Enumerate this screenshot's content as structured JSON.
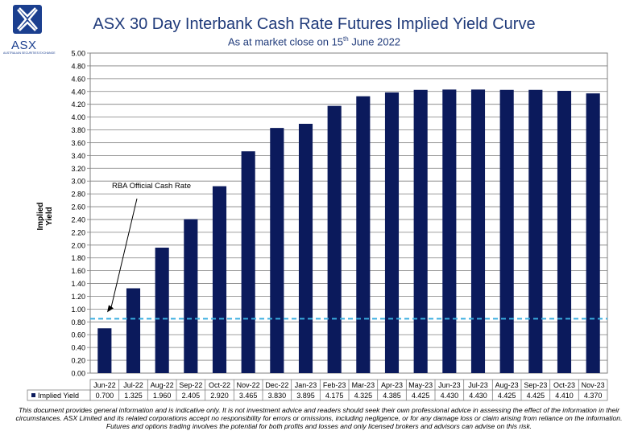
{
  "logo": {
    "text": "ASX",
    "subtext": "AUSTRALIAN SECURITIES EXCHANGE",
    "color": "#1b3f8f"
  },
  "title": "ASX 30 Day Interbank Cash Rate Futures Implied Yield Curve",
  "subtitle_prefix": "As at market close on 15",
  "subtitle_sup": "th",
  "subtitle_suffix": " June 2022",
  "disclaimer": "This document provides general information and is indicative only. It is not investment advice and readers should seek their own professional advice in assessing the effect of the information in their circumstances. ASX Limited and its related corporations accept no responsibility for errors or omissions, including negligence, or for any damage loss or claim arising from reliance on the information. Futures and options trading involves the potential for both profits and losses and only licensed brokers and advisors can advise on this risk.",
  "chart_data": {
    "type": "bar",
    "ylabel": "Implied Yield",
    "ylim": [
      0,
      5
    ],
    "ytick_step": 0.2,
    "ytick_decimals": 2,
    "grid": true,
    "categories": [
      "Jun-22",
      "Jul-22",
      "Aug-22",
      "Sep-22",
      "Oct-22",
      "Nov-22",
      "Dec-22",
      "Jan-23",
      "Feb-23",
      "Mar-23",
      "Apr-23",
      "May-23",
      "Jun-23",
      "Jul-23",
      "Aug-23",
      "Sep-23",
      "Oct-23",
      "Nov-23"
    ],
    "series": [
      {
        "name": "Implied Yield",
        "color": "#0b1a5c",
        "values": [
          0.7,
          1.325,
          1.96,
          2.405,
          2.92,
          3.465,
          3.83,
          3.895,
          4.175,
          4.325,
          4.385,
          4.425,
          4.43,
          4.43,
          4.425,
          4.425,
          4.41,
          4.37
        ],
        "table_values": [
          "0.700",
          "1.325",
          "1.960",
          "2.405",
          "2.920",
          "3.465",
          "3.830",
          "3.895",
          "4.175",
          "4.325",
          "4.385",
          "4.425",
          "4.430",
          "4.430",
          "4.425",
          "4.425",
          "4.410",
          "4.370"
        ]
      }
    ],
    "reference_line": {
      "label": "RBA Official Cash Rate",
      "value": 0.85,
      "color": "#3aaee0",
      "style": "dashed"
    },
    "data_table": true
  }
}
